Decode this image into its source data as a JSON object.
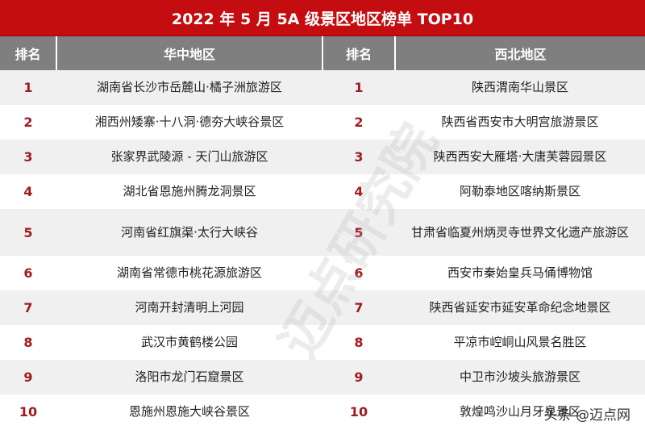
{
  "title": "2022 年 5 月 5A 级景区地区榜单 TOP10",
  "headers": {
    "rank": "排名",
    "central": "华中地区",
    "northwest": "西北地区"
  },
  "rows": [
    {
      "rank1": "1",
      "central": "湖南省长沙市岳麓山·橘子洲旅游区",
      "rank2": "1",
      "northwest": "陕西渭南华山景区"
    },
    {
      "rank1": "2",
      "central": "湘西州矮寨·十八洞·德夯大峡谷景区",
      "rank2": "2",
      "northwest": "陕西省西安市大明宫旅游景区"
    },
    {
      "rank1": "3",
      "central": "张家界武陵源 - 天门山旅游区",
      "rank2": "3",
      "northwest": "陕西西安大雁塔·大唐芙蓉园景区"
    },
    {
      "rank1": "4",
      "central": "湖北省恩施州腾龙洞景区",
      "rank2": "4",
      "northwest": "阿勒泰地区喀纳斯景区"
    },
    {
      "rank1": "5",
      "central": "河南省红旗渠·太行大峡谷",
      "rank2": "5",
      "northwest": "甘肃省临夏州炳灵寺世界文化遗产旅游区"
    },
    {
      "rank1": "6",
      "central": "湖南省常德市桃花源旅游区",
      "rank2": "6",
      "northwest": "西安市秦始皇兵马俑博物馆"
    },
    {
      "rank1": "7",
      "central": "河南开封清明上河园",
      "rank2": "7",
      "northwest": "陕西省延安市延安革命纪念地景区"
    },
    {
      "rank1": "8",
      "central": "武汉市黄鹤楼公园",
      "rank2": "8",
      "northwest": "平凉市崆峒山风景名胜区"
    },
    {
      "rank1": "9",
      "central": "洛阳市龙门石窟景区",
      "rank2": "9",
      "northwest": "中卫市沙坡头旅游景区"
    },
    {
      "rank1": "10",
      "central": "恩施州恩施大峡谷景区",
      "rank2": "10",
      "northwest": "敦煌鸣沙山月牙泉景区"
    }
  ],
  "watermark": "迈点研究院",
  "source_watermark": "头条 @迈点网",
  "colors": {
    "title_bg": "#c40d10",
    "header_bg": "#7f7f7f",
    "rank_text": "#a11a1f"
  }
}
